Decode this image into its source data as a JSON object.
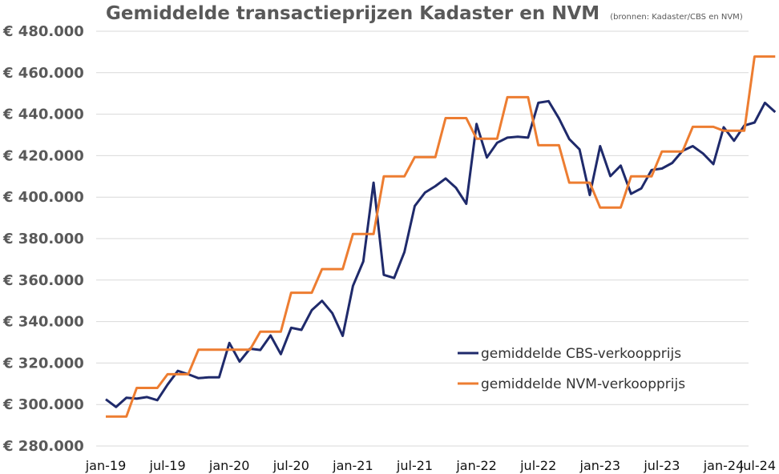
{
  "chart_data": {
    "type": "line",
    "title": "Gemiddelde transactieprijzen Kadaster en NVM",
    "subtitle": "(bronnen: Kadaster/CBS en NVM)",
    "xlabel": "",
    "ylabel": "",
    "ylim": [
      280000,
      480000
    ],
    "yticks": [
      {
        "value": 280000,
        "label": "€ 280.000"
      },
      {
        "value": 300000,
        "label": "€ 300.000"
      },
      {
        "value": 320000,
        "label": "€ 320.000"
      },
      {
        "value": 340000,
        "label": "€ 340.000"
      },
      {
        "value": 360000,
        "label": "€ 360.000"
      },
      {
        "value": 380000,
        "label": "€ 380.000"
      },
      {
        "value": 400000,
        "label": "€ 400.000"
      },
      {
        "value": 420000,
        "label": "€ 420.000"
      },
      {
        "value": 440000,
        "label": "€ 440.000"
      },
      {
        "value": 460000,
        "label": "€ 460.000"
      },
      {
        "value": 480000,
        "label": "€ 480.000"
      }
    ],
    "xticks": [
      "jan-19",
      "jul-19",
      "jan-20",
      "jul-20",
      "jan-21",
      "jul-21",
      "jan-22",
      "jul-22",
      "jan-23",
      "jul-23",
      "jan-24",
      "jul-24"
    ],
    "grid": true,
    "legend_position": "bottom-right",
    "series": [
      {
        "name": "gemiddelde CBS-verkoopprijs",
        "color": "#1f2a6b",
        "values": [
          302500,
          298800,
          303300,
          302800,
          303600,
          302100,
          309600,
          316200,
          314600,
          312700,
          313100,
          313100,
          329700,
          320700,
          326900,
          326300,
          333300,
          324300,
          337000,
          336000,
          345500,
          350000,
          344000,
          333100,
          357200,
          369000,
          407000,
          362500,
          361000,
          373500,
          395700,
          402200,
          405300,
          409000,
          404500,
          396800,
          435300,
          419100,
          426200,
          428700,
          429100,
          428700,
          445500,
          446300,
          438000,
          428000,
          423000,
          401000,
          424600,
          410100,
          415200,
          401600,
          404200,
          413100,
          413800,
          416500,
          422300,
          424600,
          421000,
          415900,
          433700,
          427200,
          434500,
          436000,
          445500,
          441000
        ]
      },
      {
        "name": "gemiddelde NVM-verkoopprijs",
        "color": "#ed7d31",
        "values": [
          294200,
          294200,
          294200,
          308000,
          308000,
          308000,
          314600,
          314600,
          314600,
          326400,
          326400,
          326400,
          326400,
          326400,
          326400,
          335100,
          335100,
          335100,
          353900,
          353900,
          353900,
          365300,
          365300,
          365300,
          382200,
          382200,
          382200,
          410000,
          410000,
          410000,
          419300,
          419300,
          419300,
          438100,
          438100,
          438100,
          428200,
          428200,
          428200,
          448200,
          448200,
          448200,
          425000,
          425000,
          425000,
          407000,
          407000,
          407000,
          395000,
          395000,
          395000,
          410000,
          410000,
          410000,
          422000,
          422000,
          422000,
          433900,
          433900,
          433900,
          432000,
          432000,
          432000,
          467800,
          467800,
          467800
        ]
      }
    ]
  }
}
